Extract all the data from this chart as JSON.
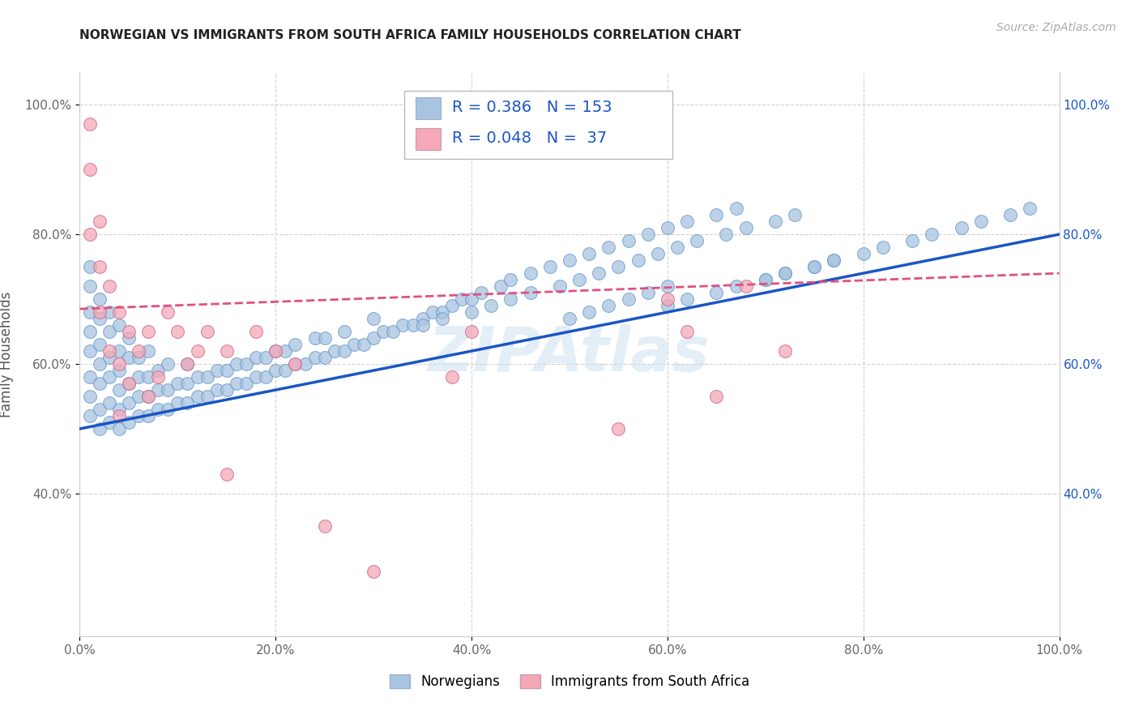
{
  "title": "NORWEGIAN VS IMMIGRANTS FROM SOUTH AFRICA FAMILY HOUSEHOLDS CORRELATION CHART",
  "source": "Source: ZipAtlas.com",
  "ylabel": "Family Households",
  "xlabel": "",
  "xlim": [
    0.0,
    1.0
  ],
  "ylim": [
    0.18,
    1.05
  ],
  "xtick_labels": [
    "0.0%",
    "20.0%",
    "40.0%",
    "60.0%",
    "80.0%",
    "100.0%"
  ],
  "xtick_vals": [
    0.0,
    0.2,
    0.4,
    0.6,
    0.8,
    1.0
  ],
  "ytick_labels": [
    "40.0%",
    "60.0%",
    "80.0%",
    "100.0%"
  ],
  "ytick_vals": [
    0.4,
    0.6,
    0.8,
    1.0
  ],
  "blue_R": 0.386,
  "blue_N": 153,
  "pink_R": 0.048,
  "pink_N": 37,
  "blue_color": "#a8c4e0",
  "pink_color": "#f4a8b8",
  "blue_line_color": "#1a56c4",
  "pink_line_color": "#e05080",
  "legend_label_blue": "Norwegians",
  "legend_label_pink": "Immigrants from South Africa",
  "watermark": "ZIPAtlas",
  "blue_line_x0": 0.0,
  "blue_line_y0": 0.5,
  "blue_line_x1": 1.0,
  "blue_line_y1": 0.8,
  "pink_line_x0": 0.0,
  "pink_line_y0": 0.685,
  "pink_line_x1": 1.0,
  "pink_line_y1": 0.74,
  "blue_points_x": [
    0.01,
    0.01,
    0.01,
    0.01,
    0.01,
    0.01,
    0.01,
    0.01,
    0.02,
    0.02,
    0.02,
    0.02,
    0.02,
    0.02,
    0.02,
    0.03,
    0.03,
    0.03,
    0.03,
    0.03,
    0.03,
    0.04,
    0.04,
    0.04,
    0.04,
    0.04,
    0.04,
    0.05,
    0.05,
    0.05,
    0.05,
    0.05,
    0.06,
    0.06,
    0.06,
    0.06,
    0.07,
    0.07,
    0.07,
    0.07,
    0.08,
    0.08,
    0.08,
    0.09,
    0.09,
    0.09,
    0.1,
    0.1,
    0.11,
    0.11,
    0.11,
    0.12,
    0.12,
    0.13,
    0.13,
    0.14,
    0.14,
    0.15,
    0.15,
    0.16,
    0.16,
    0.17,
    0.17,
    0.18,
    0.18,
    0.19,
    0.19,
    0.2,
    0.2,
    0.21,
    0.21,
    0.22,
    0.22,
    0.23,
    0.24,
    0.24,
    0.25,
    0.25,
    0.26,
    0.27,
    0.27,
    0.28,
    0.29,
    0.3,
    0.3,
    0.31,
    0.32,
    0.33,
    0.34,
    0.35,
    0.36,
    0.37,
    0.38,
    0.39,
    0.4,
    0.41,
    0.43,
    0.44,
    0.46,
    0.48,
    0.5,
    0.52,
    0.54,
    0.56,
    0.58,
    0.6,
    0.62,
    0.65,
    0.67,
    0.7,
    0.72,
    0.75,
    0.77,
    0.8,
    0.82,
    0.85,
    0.87,
    0.9,
    0.92,
    0.95,
    0.97,
    0.6,
    0.62,
    0.65,
    0.67,
    0.7,
    0.72,
    0.75,
    0.77,
    0.5,
    0.52,
    0.54,
    0.56,
    0.58,
    0.6,
    0.35,
    0.37,
    0.4,
    0.42,
    0.44,
    0.46,
    0.49,
    0.51,
    0.53,
    0.55,
    0.57,
    0.59,
    0.61,
    0.63,
    0.66,
    0.68,
    0.71,
    0.73
  ],
  "blue_points_y": [
    0.52,
    0.55,
    0.58,
    0.62,
    0.65,
    0.68,
    0.72,
    0.75,
    0.5,
    0.53,
    0.57,
    0.6,
    0.63,
    0.67,
    0.7,
    0.51,
    0.54,
    0.58,
    0.61,
    0.65,
    0.68,
    0.5,
    0.53,
    0.56,
    0.59,
    0.62,
    0.66,
    0.51,
    0.54,
    0.57,
    0.61,
    0.64,
    0.52,
    0.55,
    0.58,
    0.61,
    0.52,
    0.55,
    0.58,
    0.62,
    0.53,
    0.56,
    0.59,
    0.53,
    0.56,
    0.6,
    0.54,
    0.57,
    0.54,
    0.57,
    0.6,
    0.55,
    0.58,
    0.55,
    0.58,
    0.56,
    0.59,
    0.56,
    0.59,
    0.57,
    0.6,
    0.57,
    0.6,
    0.58,
    0.61,
    0.58,
    0.61,
    0.59,
    0.62,
    0.59,
    0.62,
    0.6,
    0.63,
    0.6,
    0.61,
    0.64,
    0.61,
    0.64,
    0.62,
    0.62,
    0.65,
    0.63,
    0.63,
    0.64,
    0.67,
    0.65,
    0.65,
    0.66,
    0.66,
    0.67,
    0.68,
    0.68,
    0.69,
    0.7,
    0.7,
    0.71,
    0.72,
    0.73,
    0.74,
    0.75,
    0.76,
    0.77,
    0.78,
    0.79,
    0.8,
    0.81,
    0.82,
    0.83,
    0.84,
    0.73,
    0.74,
    0.75,
    0.76,
    0.77,
    0.78,
    0.79,
    0.8,
    0.81,
    0.82,
    0.83,
    0.84,
    0.69,
    0.7,
    0.71,
    0.72,
    0.73,
    0.74,
    0.75,
    0.76,
    0.67,
    0.68,
    0.69,
    0.7,
    0.71,
    0.72,
    0.66,
    0.67,
    0.68,
    0.69,
    0.7,
    0.71,
    0.72,
    0.73,
    0.74,
    0.75,
    0.76,
    0.77,
    0.78,
    0.79,
    0.8,
    0.81,
    0.82,
    0.83
  ],
  "pink_points_x": [
    0.01,
    0.01,
    0.01,
    0.02,
    0.02,
    0.02,
    0.03,
    0.03,
    0.04,
    0.04,
    0.04,
    0.05,
    0.05,
    0.06,
    0.07,
    0.07,
    0.08,
    0.09,
    0.1,
    0.11,
    0.12,
    0.13,
    0.15,
    0.18,
    0.2,
    0.22,
    0.15,
    0.4,
    0.55,
    0.6,
    0.62,
    0.65,
    0.68,
    0.72,
    0.38,
    0.25,
    0.3
  ],
  "pink_points_y": [
    0.97,
    0.9,
    0.8,
    0.82,
    0.75,
    0.68,
    0.72,
    0.62,
    0.68,
    0.6,
    0.52,
    0.65,
    0.57,
    0.62,
    0.65,
    0.55,
    0.58,
    0.68,
    0.65,
    0.6,
    0.62,
    0.65,
    0.62,
    0.65,
    0.62,
    0.6,
    0.43,
    0.65,
    0.5,
    0.7,
    0.65,
    0.55,
    0.72,
    0.62,
    0.58,
    0.35,
    0.28
  ]
}
